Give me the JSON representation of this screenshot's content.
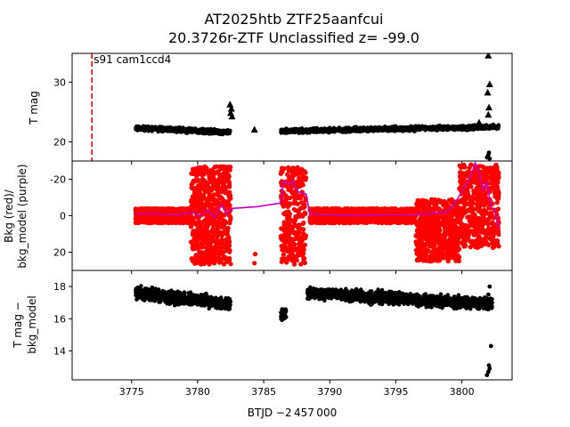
{
  "chart_data": {
    "type": "scatter",
    "title_line1": "AT2025htb  ZTF25aanfcui",
    "title_line2": "20.3726r-ZTF Unclassified z= -99.0",
    "xlabel": "BTJD −2 457 000",
    "xlim": [
      3770.5,
      3803.8
    ],
    "xticks": [
      3775,
      3780,
      3785,
      3790,
      3795,
      3800
    ],
    "annotation": "s91 cam1ccd4",
    "discovery_line_x": 3772.0,
    "panels": [
      {
        "id": "top",
        "ylabel": "T mag",
        "ylim": [
          34.8,
          16.8
        ],
        "yticks": [
          20,
          30
        ],
        "segments": [
          {
            "x0": 3775.3,
            "x1": 3782.5,
            "y0": 22.3,
            "y1": 21.6,
            "spread": 0.9,
            "count": 700
          },
          {
            "x0": 3786.3,
            "x1": 3802.8,
            "y0": 21.8,
            "y1": 22.5,
            "spread": 0.9,
            "count": 1300
          }
        ],
        "triangles": [
          {
            "x": 3782.5,
            "y": 24.8
          },
          {
            "x": 3782.55,
            "y": 25.5
          },
          {
            "x": 3782.45,
            "y": 26.2
          },
          {
            "x": 3782.6,
            "y": 24.2
          },
          {
            "x": 3784.3,
            "y": 22.0
          },
          {
            "x": 3801.3,
            "y": 23.2
          },
          {
            "x": 3802.0,
            "y": 24.5
          },
          {
            "x": 3802.05,
            "y": 25.7
          },
          {
            "x": 3801.95,
            "y": 28.2
          },
          {
            "x": 3802.1,
            "y": 29.6
          },
          {
            "x": 3802.0,
            "y": 34.4
          }
        ],
        "dots": [
          {
            "x": 3801.9,
            "y": 17.4
          },
          {
            "x": 3802.0,
            "y": 17.8
          },
          {
            "x": 3802.1,
            "y": 17.2
          },
          {
            "x": 3802.05,
            "y": 18.2
          }
        ]
      },
      {
        "id": "middle",
        "ylabel_line1": "Bkg (red)/",
        "ylabel_line2": "bkg_model (purple)",
        "ylim": [
          -30,
          30
        ],
        "yticks": [
          -20,
          0,
          20
        ],
        "red_color": "#ff0000",
        "model_color": "#bf00bf",
        "red_segments": [
          {
            "x0": 3775.3,
            "x1": 3779.5,
            "center": 0,
            "spread": 5,
            "count": 900
          },
          {
            "x0": 3779.5,
            "x1": 3782.5,
            "center": 0,
            "spread": 27,
            "count": 700
          },
          {
            "x0": 3786.3,
            "x1": 3788.2,
            "center": 0,
            "spread": 27,
            "count": 300
          },
          {
            "x0": 3788.5,
            "x1": 3796.5,
            "center": 0,
            "spread": 5,
            "count": 1100
          },
          {
            "x0": 3796.5,
            "x1": 3799.8,
            "center": 8,
            "spread": 17,
            "count": 700
          },
          {
            "x0": 3799.8,
            "x1": 3802.8,
            "center": -5,
            "spread": 23,
            "count": 500
          }
        ],
        "red_extra": [
          {
            "x": 3784.3,
            "y": 26
          },
          {
            "x": 3784.35,
            "y": 21
          }
        ],
        "model_line": [
          [
            3775.3,
            -1
          ],
          [
            3777,
            -1
          ],
          [
            3778.5,
            -0.5
          ],
          [
            3779.5,
            -2
          ],
          [
            3780.2,
            0
          ],
          [
            3780.8,
            -3
          ],
          [
            3781.3,
            1
          ],
          [
            3781.8,
            -6
          ],
          [
            3782.2,
            -1
          ],
          [
            3782.6,
            -4
          ],
          [
            3784.5,
            -5
          ],
          [
            3786.3,
            -7
          ],
          [
            3786.5,
            -19
          ],
          [
            3786.9,
            -17
          ],
          [
            3787.2,
            -19
          ],
          [
            3787.6,
            -13
          ],
          [
            3788.2,
            -12
          ],
          [
            3788.5,
            -1
          ],
          [
            3790,
            -0.5
          ],
          [
            3792,
            0
          ],
          [
            3794,
            -0.5
          ],
          [
            3796,
            -0.5
          ],
          [
            3797.5,
            -1
          ],
          [
            3798.8,
            -2
          ],
          [
            3799.4,
            -6
          ],
          [
            3799.9,
            -12
          ],
          [
            3800.3,
            -17
          ],
          [
            3800.7,
            -22
          ],
          [
            3801.0,
            -29
          ],
          [
            3801.3,
            -24
          ],
          [
            3801.6,
            -14
          ],
          [
            3801.9,
            -18
          ],
          [
            3802.2,
            -5
          ],
          [
            3802.5,
            -3
          ],
          [
            3802.8,
            7
          ]
        ]
      },
      {
        "id": "bottom",
        "ylabel_line1": "T mag −",
        "ylabel_line2": "bkg_model",
        "ylim": [
          19.0,
          12.2
        ],
        "yticks": [
          14,
          16,
          18
        ],
        "segments": [
          {
            "x0": 3775.3,
            "x1": 3782.5,
            "y0": 17.6,
            "y1": 16.9,
            "spread": 0.9,
            "count": 700
          },
          {
            "x0": 3788.3,
            "x1": 3802.3,
            "y0": 17.6,
            "y1": 16.9,
            "spread": 0.9,
            "count": 1300
          }
        ],
        "cluster": {
          "x0": 3786.3,
          "x1": 3786.7,
          "y0": 15.9,
          "y1": 16.6,
          "count": 40
        },
        "dots": [
          {
            "x": 3801.9,
            "y": 12.5
          },
          {
            "x": 3802.0,
            "y": 12.7
          },
          {
            "x": 3802.1,
            "y": 12.9
          },
          {
            "x": 3802.05,
            "y": 13.1
          },
          {
            "x": 3802.2,
            "y": 14.3
          },
          {
            "x": 3802.0,
            "y": 17.5
          },
          {
            "x": 3802.1,
            "y": 18.0
          }
        ]
      }
    ]
  }
}
